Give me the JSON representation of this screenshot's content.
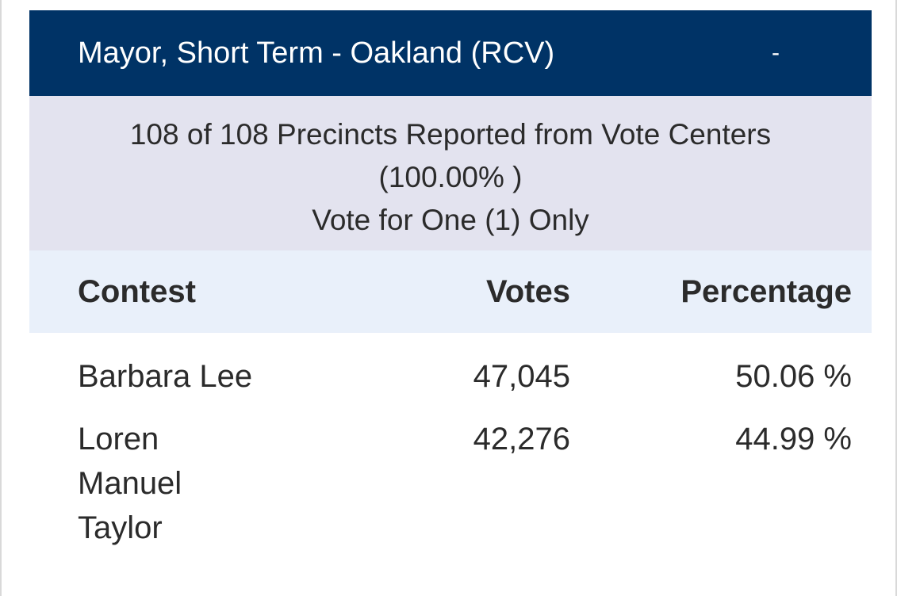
{
  "contest": {
    "title": "Mayor, Short Term - Oakland (RCV)",
    "collapse_label": "-"
  },
  "precincts": {
    "reported": "108 of 108 Precincts Reported from Vote Centers",
    "percent": "(100.00% )",
    "instruction": "Vote for One (1) Only"
  },
  "table": {
    "headers": {
      "contest": "Contest",
      "votes": "Votes",
      "percentage": "Percentage"
    },
    "rows": [
      {
        "name_lines": [
          "Barbara Lee"
        ],
        "votes": "47,045",
        "percentage": "50.06 %"
      },
      {
        "name_lines": [
          "Loren",
          "Manuel",
          "Taylor"
        ],
        "votes": "42,276",
        "percentage": "44.99 %"
      }
    ]
  },
  "colors": {
    "header_bg": "#003366",
    "precinct_bg": "#e3e3ef",
    "column_header_bg": "#e9f0fa"
  }
}
